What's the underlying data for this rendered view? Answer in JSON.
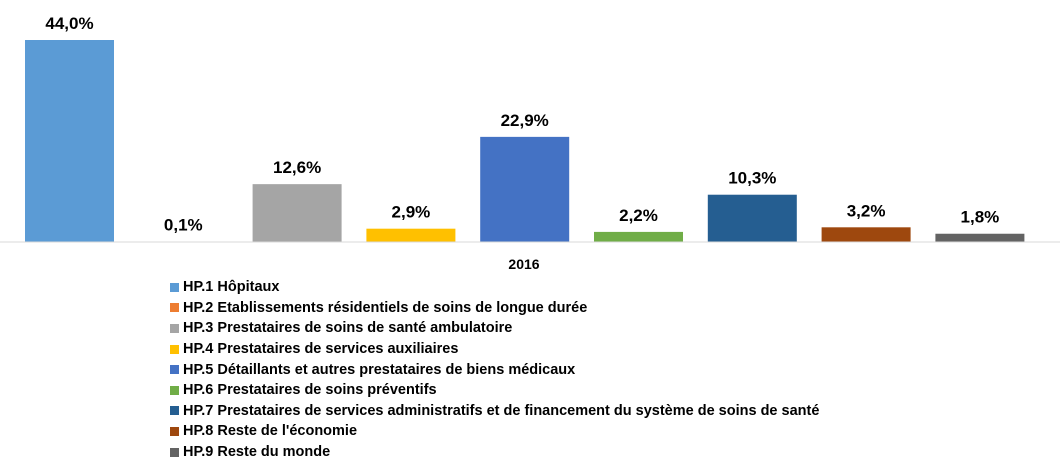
{
  "chart_data": {
    "type": "bar",
    "categories": [
      "2016"
    ],
    "ylim": [
      0,
      44.0
    ],
    "grid": false,
    "legend_position": "bottom",
    "series": [
      {
        "name": "HP.1 Hôpitaux",
        "values": [
          44.0
        ],
        "label": "44,0%",
        "color": "#5B9BD5"
      },
      {
        "name": "HP.2 Etablissements résidentiels de soins de longue durée",
        "values": [
          0.1
        ],
        "label": "0,1%",
        "color": "#ED7D31"
      },
      {
        "name": "HP.3 Prestataires de soins de santé ambulatoire",
        "values": [
          12.6
        ],
        "label": "12,6%",
        "color": "#A5A5A5"
      },
      {
        "name": "HP.4 Prestataires de services auxiliaires",
        "values": [
          2.9
        ],
        "label": "2,9%",
        "color": "#FFC000"
      },
      {
        "name": "HP.5 Détaillants et autres prestataires de biens médicaux",
        "values": [
          22.9
        ],
        "label": "22,9%",
        "color": "#4472C4"
      },
      {
        "name": "HP.6 Prestataires de soins préventifs",
        "values": [
          2.2
        ],
        "label": "2,2%",
        "color": "#70AD47"
      },
      {
        "name": "HP.7 Prestataires de services administratifs et de financement du système de soins de santé",
        "values": [
          10.3
        ],
        "label": "10,3%",
        "color": "#255E91"
      },
      {
        "name": "HP.8 Reste de l'économie",
        "values": [
          3.2
        ],
        "label": "3,2%",
        "color": "#9E480E"
      },
      {
        "name": "HP.9 Reste du monde",
        "values": [
          1.8
        ],
        "label": "1,8%",
        "color": "#636363"
      }
    ]
  }
}
